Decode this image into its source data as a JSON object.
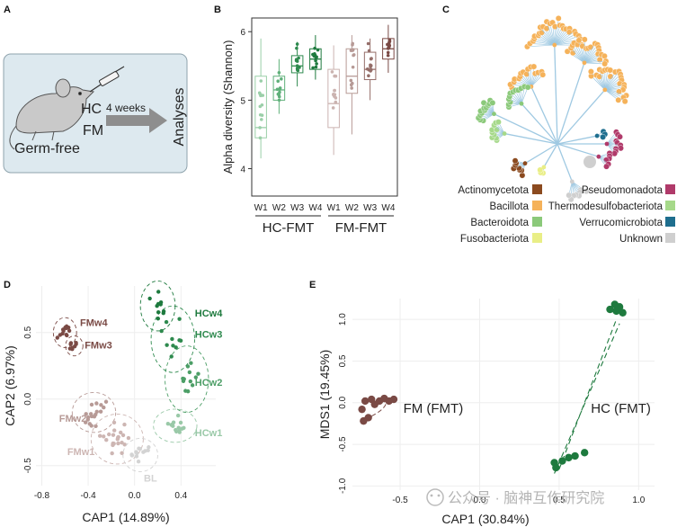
{
  "panels": {
    "A": {
      "label": "A",
      "hc": "HC",
      "fm": "FM",
      "weeks": "4 weeks",
      "analyses": "Analyses",
      "germ_free": "Germ-free"
    },
    "B": {
      "label": "B"
    },
    "C": {
      "label": "C",
      "legend": [
        {
          "name": "Actinomycetota",
          "color": "#8B4A1F"
        },
        {
          "name": "Bacillota",
          "color": "#F5B25A"
        },
        {
          "name": "Bacteroidota",
          "color": "#8BC97A"
        },
        {
          "name": "Fusobacteriota",
          "color": "#E9EE86"
        },
        {
          "name": "Pseudomonadota",
          "color": "#B03A6A"
        },
        {
          "name": "Thermodesulfobacteriota",
          "color": "#A6D98A"
        },
        {
          "name": "Verrucomicrobiota",
          "color": "#1E6E8E"
        },
        {
          "name": "Unknown",
          "color": "#CFCFCF"
        }
      ]
    },
    "D": {
      "label": "D",
      "groups": [
        {
          "name": "FMw4",
          "color": "#7A4A45"
        },
        {
          "name": "FMw3",
          "color": "#7A4A45"
        },
        {
          "name": "FMw2",
          "color": "#B79A96"
        },
        {
          "name": "FMw1",
          "color": "#CDB6B3"
        },
        {
          "name": "BL",
          "color": "#CFCFCF"
        },
        {
          "name": "HCw4",
          "color": "#1E7A3E"
        },
        {
          "name": "HCw3",
          "color": "#2E8A4E"
        },
        {
          "name": "HCw2",
          "color": "#4C9E66"
        },
        {
          "name": "HCw1",
          "color": "#9AC9A8"
        }
      ]
    },
    "E": {
      "label": "E",
      "fm_label": "FM (FMT)",
      "hc_label": "HC (FMT)",
      "fm_color": "#7A4A45",
      "hc_color": "#1E7A3E"
    }
  },
  "watermark": "公众号 · 脑神互作研究院",
  "chart_data": [
    {
      "panel": "B",
      "type": "box",
      "ylabel": "Alpha diversity (Shannon)",
      "ylim": [
        3.6,
        6.2
      ],
      "yticks": [
        4,
        5,
        6
      ],
      "categories": [
        "W1",
        "W2",
        "W3",
        "W4",
        "W1",
        "W2",
        "W3",
        "W4"
      ],
      "group_labels": [
        "HC-FMT",
        "FM-FMT"
      ],
      "series": [
        {
          "group": "HC-FMT",
          "week": "W1",
          "q1": 4.45,
          "median": 4.6,
          "q3": 5.35,
          "min": 4.15,
          "max": 5.9,
          "color": "#9ACFA8"
        },
        {
          "group": "HC-FMT",
          "week": "W2",
          "q1": 5.0,
          "median": 5.15,
          "q3": 5.35,
          "min": 4.8,
          "max": 5.6,
          "color": "#5FB07A"
        },
        {
          "group": "HC-FMT",
          "week": "W3",
          "q1": 5.4,
          "median": 5.5,
          "q3": 5.65,
          "min": 5.2,
          "max": 5.85,
          "color": "#2E8A4E"
        },
        {
          "group": "HC-FMT",
          "week": "W4",
          "q1": 5.45,
          "median": 5.6,
          "q3": 5.75,
          "min": 5.3,
          "max": 5.95,
          "color": "#1E7A3E"
        },
        {
          "group": "FM-FMT",
          "week": "W1",
          "q1": 4.6,
          "median": 4.95,
          "q3": 5.45,
          "min": 4.2,
          "max": 5.8,
          "color": "#CBB3B0"
        },
        {
          "group": "FM-FMT",
          "week": "W2",
          "q1": 5.1,
          "median": 5.35,
          "q3": 5.75,
          "min": 4.5,
          "max": 5.95,
          "color": "#B79A96"
        },
        {
          "group": "FM-FMT",
          "week": "W3",
          "q1": 5.3,
          "median": 5.45,
          "q3": 5.7,
          "min": 5.0,
          "max": 5.9,
          "color": "#946D68"
        },
        {
          "group": "FM-FMT",
          "week": "W4",
          "q1": 5.6,
          "median": 5.75,
          "q3": 5.9,
          "min": 5.4,
          "max": 6.1,
          "color": "#7A4A45"
        }
      ]
    },
    {
      "panel": "D",
      "type": "scatter",
      "xlabel": "CAP1 (14.89%)",
      "ylabel": "CAP2 (6.97%)",
      "xlim": [
        -0.85,
        0.7
      ],
      "ylim": [
        -0.65,
        0.85
      ],
      "xticks": [
        -0.8,
        -0.4,
        0.0,
        0.4
      ],
      "xtick_labels": [
        "-0.8",
        "-0.4",
        "0.0",
        "0.4"
      ],
      "yticks": [
        -0.5,
        0.0,
        0.5
      ],
      "ytick_labels": [
        "-0.5",
        "0.0",
        "0.5"
      ],
      "clusters": [
        {
          "name": "FMw4",
          "cx": -0.6,
          "cy": 0.5,
          "rx": 0.08,
          "ry": 0.09,
          "n": 12,
          "color": "#7A4A45"
        },
        {
          "name": "FMw3",
          "cx": -0.52,
          "cy": 0.4,
          "rx": 0.06,
          "ry": 0.06,
          "n": 8,
          "color": "#7A4A45"
        },
        {
          "name": "FMw2",
          "cx": -0.35,
          "cy": -0.1,
          "rx": 0.15,
          "ry": 0.12,
          "n": 18,
          "color": "#B79A96"
        },
        {
          "name": "FMw1",
          "cx": -0.15,
          "cy": -0.3,
          "rx": 0.18,
          "ry": 0.15,
          "n": 22,
          "color": "#CDB6B3"
        },
        {
          "name": "BL",
          "cx": 0.05,
          "cy": -0.42,
          "rx": 0.12,
          "ry": 0.1,
          "n": 12,
          "color": "#D3D3D3"
        },
        {
          "name": "HCw1",
          "cx": 0.35,
          "cy": -0.2,
          "rx": 0.15,
          "ry": 0.1,
          "n": 14,
          "color": "#9AC9A8"
        },
        {
          "name": "HCw2",
          "cx": 0.45,
          "cy": 0.15,
          "rx": 0.15,
          "ry": 0.2,
          "n": 12,
          "color": "#4C9E66"
        },
        {
          "name": "HCw3",
          "cx": 0.33,
          "cy": 0.45,
          "rx": 0.15,
          "ry": 0.2,
          "n": 10,
          "color": "#2E8A4E"
        },
        {
          "name": "HCw4",
          "cx": 0.2,
          "cy": 0.7,
          "rx": 0.12,
          "ry": 0.15,
          "n": 10,
          "color": "#1E7A3E"
        }
      ]
    },
    {
      "panel": "E",
      "type": "scatter",
      "xlabel": "CAP1 (30.84%)",
      "ylabel": "MDS1 (19.45%)",
      "xlim": [
        -0.8,
        1.1
      ],
      "ylim": [
        -1.05,
        1.25
      ],
      "xticks": [
        -0.5,
        0.0,
        0.5,
        1.0
      ],
      "xtick_labels": [
        "-0.5",
        "0.0",
        "0.5",
        "1.0"
      ],
      "yticks": [
        -1.0,
        -0.5,
        0.0,
        0.5,
        1.0
      ],
      "ytick_labels": [
        "-1.0",
        "-0.5",
        "0.0",
        "0.5",
        "1.0"
      ],
      "points": {
        "FM": [
          [
            -0.74,
            -0.08
          ],
          [
            -0.72,
            0.02
          ],
          [
            -0.7,
            -0.18
          ],
          [
            -0.68,
            0.04
          ],
          [
            -0.66,
            -0.02
          ],
          [
            -0.63,
            0.02
          ],
          [
            -0.6,
            0.05
          ],
          [
            -0.57,
            0.02
          ],
          [
            -0.54,
            0.04
          ],
          [
            -0.73,
            -0.22
          ]
        ],
        "HC": [
          [
            0.47,
            -0.72
          ],
          [
            0.48,
            -0.78
          ],
          [
            0.52,
            -0.7
          ],
          [
            0.56,
            -0.66
          ],
          [
            0.6,
            -0.64
          ],
          [
            0.66,
            -0.6
          ],
          [
            0.82,
            1.12
          ],
          [
            0.85,
            1.18
          ],
          [
            0.88,
            1.15
          ],
          [
            0.9,
            1.08
          ],
          [
            0.86,
            1.1
          ]
        ]
      }
    }
  ]
}
